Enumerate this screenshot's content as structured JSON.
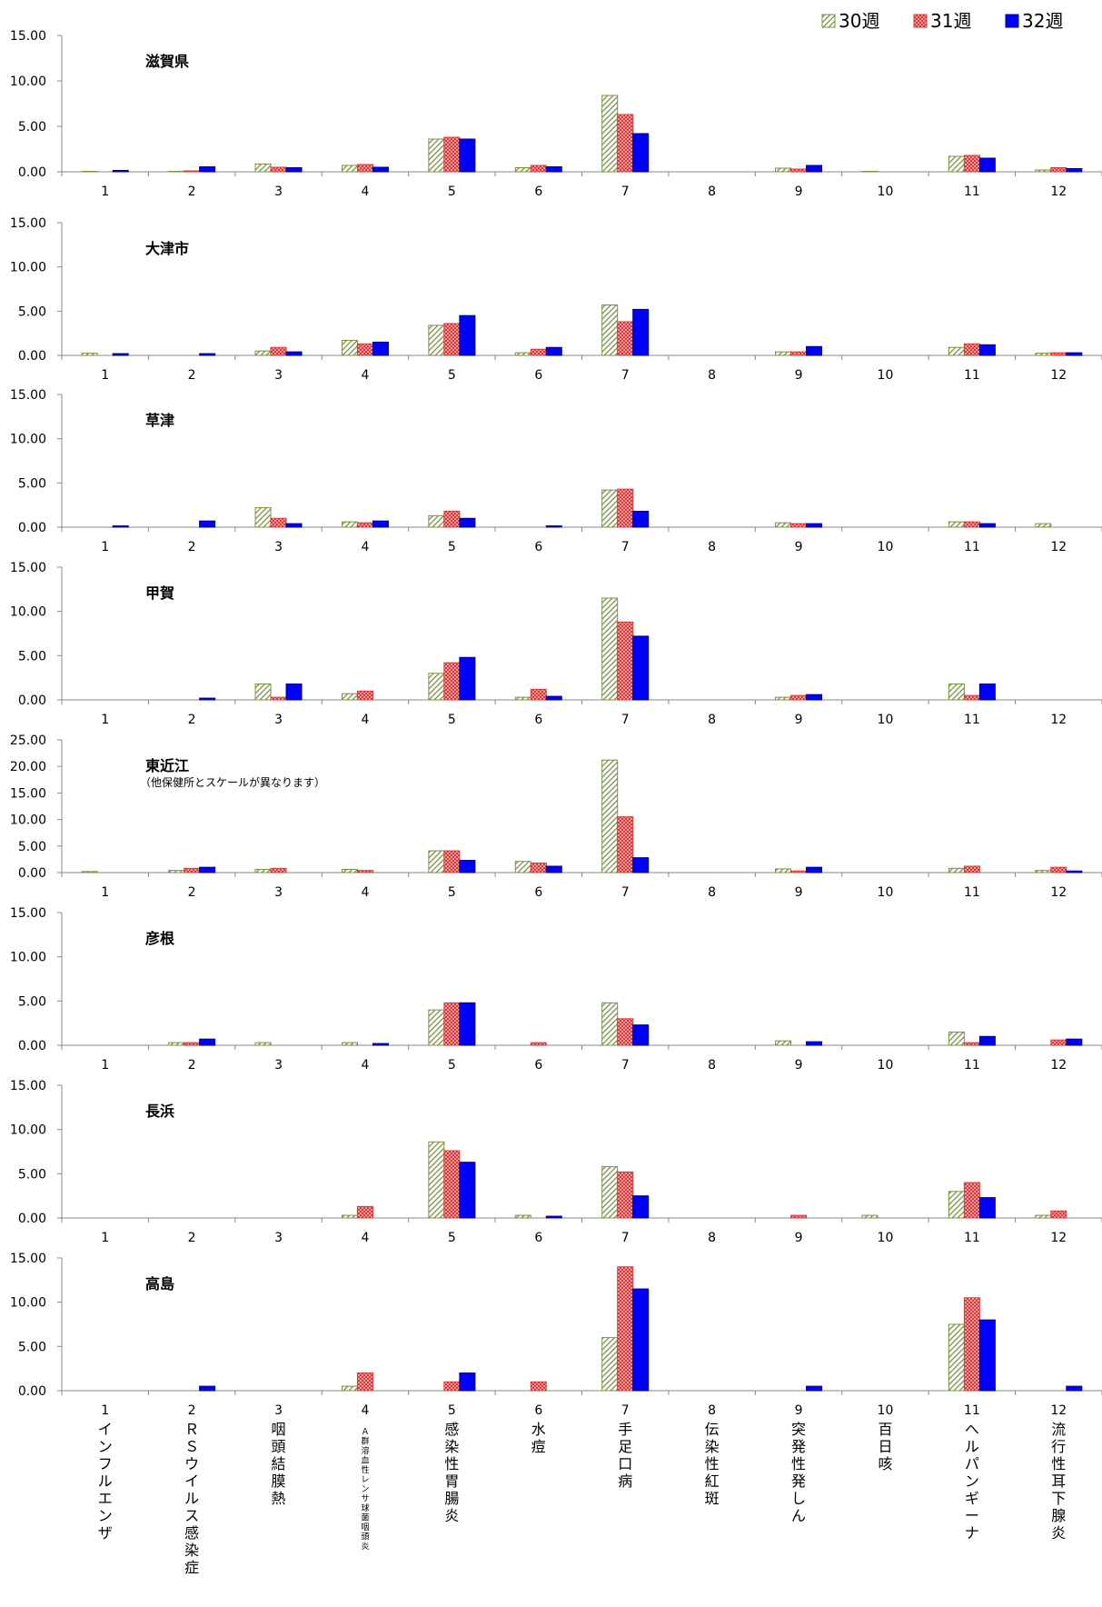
{
  "legend": [
    {
      "label": "30週",
      "color": "#ffffff",
      "pattern": "diagonal-hatch-green"
    },
    {
      "label": "31週",
      "color": "#f27b7b",
      "pattern": "red-check"
    },
    {
      "label": "32週",
      "color": "#0000ff",
      "pattern": "solid-blue"
    }
  ],
  "pattern_colors": {
    "hatch_stroke": "#77933c",
    "check_fill": "#ff9999",
    "check_stroke": "#d63a3a",
    "solid_fill": "#0000ff",
    "solid_stroke": "#000080",
    "axis": "#888888"
  },
  "categories": [
    "1",
    "2",
    "3",
    "4",
    "5",
    "6",
    "7",
    "8",
    "9",
    "10",
    "11",
    "12"
  ],
  "disease_names": [
    "インフルエンザ",
    "ＲＳウイルス感染症",
    "咽頭結膜熱",
    "Ａ群溶血性レンサ球菌咽頭炎",
    "感染性胃腸炎",
    "水痘",
    "手足口病",
    "伝染性紅斑",
    "突発性発しん",
    "百日咳",
    "ヘルパンギーナ",
    "流行性耳下腺炎"
  ],
  "chart_data": [
    {
      "type": "bar",
      "title": "滋賀県",
      "subtitle": "",
      "ylim": [
        0,
        15
      ],
      "yticks": [
        "0.00",
        "5.00",
        "10.00",
        "15.00"
      ],
      "categories": [
        "1",
        "2",
        "3",
        "4",
        "5",
        "6",
        "7",
        "8",
        "9",
        "10",
        "11",
        "12"
      ],
      "series": [
        {
          "name": "30週",
          "values": [
            0.05,
            0.05,
            0.85,
            0.7,
            3.6,
            0.45,
            8.4,
            0,
            0.4,
            0.05,
            1.7,
            0.2
          ]
        },
        {
          "name": "31週",
          "values": [
            0,
            0.1,
            0.5,
            0.8,
            3.8,
            0.7,
            6.3,
            0,
            0.3,
            0,
            1.8,
            0.45
          ]
        },
        {
          "name": "32週",
          "values": [
            0.15,
            0.55,
            0.45,
            0.5,
            3.6,
            0.55,
            4.2,
            0,
            0.7,
            0,
            1.5,
            0.35
          ]
        }
      ]
    },
    {
      "type": "bar",
      "title": "大津市",
      "subtitle": "",
      "ylim": [
        0,
        15
      ],
      "yticks": [
        "0.00",
        "5.00",
        "10.00",
        "15.00"
      ],
      "categories": [
        "1",
        "2",
        "3",
        "4",
        "5",
        "6",
        "7",
        "8",
        "9",
        "10",
        "11",
        "12"
      ],
      "series": [
        {
          "name": "30週",
          "values": [
            0.25,
            0,
            0.5,
            1.7,
            3.4,
            0.3,
            5.7,
            0,
            0.4,
            0,
            0.9,
            0.25
          ]
        },
        {
          "name": "31週",
          "values": [
            0,
            0,
            0.9,
            1.3,
            3.6,
            0.7,
            3.8,
            0,
            0.4,
            0,
            1.3,
            0.3
          ]
        },
        {
          "name": "32週",
          "values": [
            0.2,
            0.2,
            0.4,
            1.5,
            4.5,
            0.9,
            5.2,
            0,
            1.0,
            0,
            1.2,
            0.3
          ]
        }
      ]
    },
    {
      "type": "bar",
      "title": "草津",
      "subtitle": "",
      "ylim": [
        0,
        15
      ],
      "yticks": [
        "0.00",
        "5.00",
        "10.00",
        "15.00"
      ],
      "categories": [
        "1",
        "2",
        "3",
        "4",
        "5",
        "6",
        "7",
        "8",
        "9",
        "10",
        "11",
        "12"
      ],
      "series": [
        {
          "name": "30週",
          "values": [
            0,
            0,
            2.2,
            0.6,
            1.3,
            0,
            4.2,
            0,
            0.5,
            0,
            0.6,
            0.4
          ]
        },
        {
          "name": "31週",
          "values": [
            0,
            0,
            1.0,
            0.5,
            1.8,
            0,
            4.3,
            0,
            0.4,
            0,
            0.6,
            0
          ]
        },
        {
          "name": "32週",
          "values": [
            0.15,
            0.7,
            0.4,
            0.7,
            1.0,
            0.15,
            1.8,
            0,
            0.4,
            0,
            0.4,
            0
          ]
        }
      ]
    },
    {
      "type": "bar",
      "title": "甲賀",
      "subtitle": "",
      "ylim": [
        0,
        15
      ],
      "yticks": [
        "0.00",
        "5.00",
        "10.00",
        "15.00"
      ],
      "categories": [
        "1",
        "2",
        "3",
        "4",
        "5",
        "6",
        "7",
        "8",
        "9",
        "10",
        "11",
        "12"
      ],
      "series": [
        {
          "name": "30週",
          "values": [
            0,
            0,
            1.8,
            0.7,
            3.0,
            0.3,
            11.5,
            0,
            0.3,
            0,
            1.8,
            0
          ]
        },
        {
          "name": "31週",
          "values": [
            0,
            0,
            0.3,
            1.0,
            4.2,
            1.2,
            8.8,
            0,
            0.5,
            0,
            0.5,
            0
          ]
        },
        {
          "name": "32週",
          "values": [
            0,
            0.2,
            1.8,
            0,
            4.8,
            0.4,
            7.2,
            0,
            0.6,
            0,
            1.8,
            0
          ]
        }
      ]
    },
    {
      "type": "bar",
      "title": "東近江",
      "subtitle": "（他保健所とスケールが異なります）",
      "ylim": [
        0,
        25
      ],
      "yticks": [
        "0.00",
        "5.00",
        "10.00",
        "15.00",
        "20.00",
        "25.00"
      ],
      "categories": [
        "1",
        "2",
        "3",
        "4",
        "5",
        "6",
        "7",
        "8",
        "9",
        "10",
        "11",
        "12"
      ],
      "series": [
        {
          "name": "30週",
          "values": [
            0.2,
            0.4,
            0.6,
            0.6,
            4.1,
            2.1,
            21.2,
            0,
            0.7,
            0,
            0.8,
            0.4
          ]
        },
        {
          "name": "31週",
          "values": [
            0,
            0.8,
            0.8,
            0.4,
            4.1,
            1.8,
            10.5,
            0,
            0.3,
            0,
            1.2,
            1.0
          ]
        },
        {
          "name": "32週",
          "values": [
            0,
            1.0,
            0,
            0,
            2.3,
            1.2,
            2.8,
            0,
            1.0,
            0,
            0,
            0.3
          ]
        }
      ]
    },
    {
      "type": "bar",
      "title": "彦根",
      "subtitle": "",
      "ylim": [
        0,
        15
      ],
      "yticks": [
        "0.00",
        "5.00",
        "10.00",
        "15.00"
      ],
      "categories": [
        "1",
        "2",
        "3",
        "4",
        "5",
        "6",
        "7",
        "8",
        "9",
        "10",
        "11",
        "12"
      ],
      "series": [
        {
          "name": "30週",
          "values": [
            0,
            0.3,
            0.3,
            0.3,
            4.0,
            0,
            4.8,
            0,
            0.5,
            0,
            1.5,
            0
          ]
        },
        {
          "name": "31週",
          "values": [
            0,
            0.3,
            0,
            0,
            4.8,
            0.3,
            3.0,
            0,
            0,
            0,
            0.3,
            0.6
          ]
        },
        {
          "name": "32週",
          "values": [
            0,
            0.7,
            0,
            0.2,
            4.8,
            0,
            2.3,
            0,
            0.4,
            0,
            1.0,
            0.7
          ]
        }
      ]
    },
    {
      "type": "bar",
      "title": "長浜",
      "subtitle": "",
      "ylim": [
        0,
        15
      ],
      "yticks": [
        "0.00",
        "5.00",
        "10.00",
        "15.00"
      ],
      "categories": [
        "1",
        "2",
        "3",
        "4",
        "5",
        "6",
        "7",
        "8",
        "9",
        "10",
        "11",
        "12"
      ],
      "series": [
        {
          "name": "30週",
          "values": [
            0,
            0,
            0,
            0.3,
            8.6,
            0.3,
            5.8,
            0,
            0,
            0.3,
            3.0,
            0.3
          ]
        },
        {
          "name": "31週",
          "values": [
            0,
            0,
            0,
            1.3,
            7.6,
            0,
            5.2,
            0,
            0.3,
            0,
            4.0,
            0.8
          ]
        },
        {
          "name": "32週",
          "values": [
            0,
            0,
            0,
            0,
            6.3,
            0.2,
            2.5,
            0,
            0,
            0,
            2.3,
            0
          ]
        }
      ]
    },
    {
      "type": "bar",
      "title": "高島",
      "subtitle": "",
      "ylim": [
        0,
        15
      ],
      "yticks": [
        "0.00",
        "5.00",
        "10.00",
        "15.00"
      ],
      "categories": [
        "1",
        "2",
        "3",
        "4",
        "5",
        "6",
        "7",
        "8",
        "9",
        "10",
        "11",
        "12"
      ],
      "series": [
        {
          "name": "30週",
          "values": [
            0,
            0,
            0,
            0.5,
            0,
            0,
            6.0,
            0,
            0,
            0,
            7.5,
            0
          ]
        },
        {
          "name": "31週",
          "values": [
            0,
            0,
            0,
            2.0,
            1.0,
            1.0,
            14.0,
            0,
            0,
            0,
            10.5,
            0
          ]
        },
        {
          "name": "32週",
          "values": [
            0,
            0.5,
            0,
            0,
            2.0,
            0,
            11.5,
            0,
            0.5,
            0,
            8.0,
            0.5
          ]
        }
      ]
    }
  ]
}
